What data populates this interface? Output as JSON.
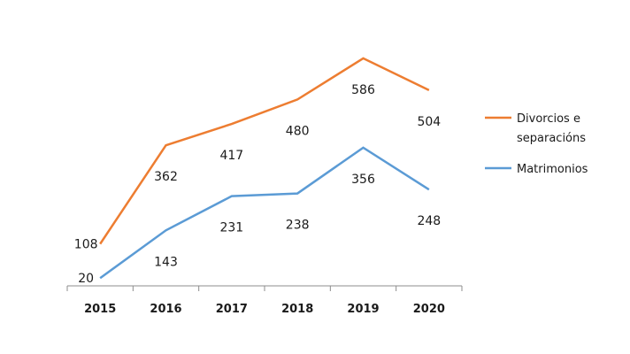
{
  "chart_data": {
    "type": "line",
    "title": "",
    "xlabel": "",
    "ylabel": "",
    "x": [
      "2015",
      "2016",
      "2017",
      "2018",
      "2019",
      "2020"
    ],
    "ylim": [
      0,
      620
    ],
    "grid": false,
    "legend_position": "right",
    "series": [
      {
        "name_lines": [
          "Divorcios e",
          "separacións"
        ],
        "color": "#ed7d31",
        "values": [
          108,
          362,
          417,
          480,
          586,
          504
        ]
      },
      {
        "name_lines": [
          "Matrimonios"
        ],
        "color": "#5b9bd5",
        "values": [
          20,
          143,
          231,
          238,
          356,
          248
        ]
      }
    ]
  }
}
